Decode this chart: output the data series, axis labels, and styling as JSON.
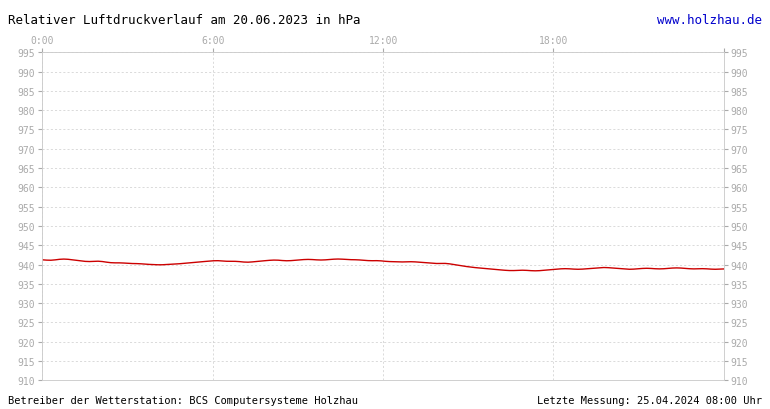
{
  "title": "Relativer Luftdruckverlauf am 20.06.2023 in hPa",
  "url_text": "www.holzhau.de",
  "footer_left": "Betreiber der Wetterstation: BCS Computersysteme Holzhau",
  "footer_right": "Letzte Messung: 25.04.2024 08:00 Uhr",
  "bg_color": "#ffffff",
  "plot_bg_color": "#ffffff",
  "grid_color": "#cccccc",
  "line_color": "#cc0000",
  "title_color": "#000000",
  "url_color": "#0000cc",
  "footer_color": "#000000",
  "tick_color": "#aaaaaa",
  "ylim": [
    910,
    995
  ],
  "ytick_step": 5,
  "xlim": [
    0,
    1440
  ],
  "xtick_positions": [
    0,
    360,
    720,
    1080,
    1440
  ],
  "xtick_labels": [
    "0:00",
    "6:00",
    "12:00",
    "18:00",
    ""
  ],
  "pressure_data": [
    941.3,
    941.1,
    941.0,
    941.2,
    941.4,
    941.5,
    941.4,
    941.2,
    941.1,
    940.9,
    940.8,
    940.7,
    940.8,
    941.0,
    940.8,
    940.6,
    940.4,
    940.4,
    940.5,
    940.4,
    940.3,
    940.2,
    940.3,
    940.2,
    940.1,
    940.0,
    940.0,
    939.9,
    939.9,
    940.0,
    940.1,
    940.1,
    940.2,
    940.3,
    940.4,
    940.5,
    940.6,
    940.7,
    940.8,
    940.9,
    941.0,
    941.1,
    940.9,
    940.8,
    940.8,
    940.9,
    940.8,
    940.6,
    940.5,
    940.7,
    940.8,
    940.9,
    941.0,
    941.1,
    941.2,
    941.2,
    941.0,
    940.9,
    941.0,
    941.1,
    941.2,
    941.3,
    941.4,
    941.3,
    941.2,
    941.1,
    941.2,
    941.3,
    941.4,
    941.5,
    941.4,
    941.3,
    941.2,
    941.3,
    941.2,
    941.1,
    941.0,
    940.9,
    941.1,
    941.0,
    940.8,
    940.7,
    940.8,
    940.7,
    940.6,
    940.7,
    940.8,
    940.7,
    940.6,
    940.5,
    940.4,
    940.3,
    940.2,
    940.3,
    940.4,
    940.2,
    940.0,
    939.8,
    939.6,
    939.5,
    939.3,
    939.2,
    939.1,
    939.0,
    938.9,
    938.8,
    938.7,
    938.6,
    938.5,
    938.4,
    938.4,
    938.5,
    938.6,
    938.5,
    938.4,
    938.3,
    938.4,
    938.5,
    938.6,
    938.7,
    938.8,
    938.9,
    939.0,
    938.9,
    938.8,
    938.7,
    938.8,
    938.9,
    939.0,
    939.1,
    939.2,
    939.3,
    939.2,
    939.1,
    939.0,
    938.9,
    938.8,
    938.7,
    938.8,
    938.9,
    939.0,
    939.1,
    939.0,
    938.9,
    938.8,
    938.9,
    939.0,
    939.1,
    939.2,
    939.1,
    939.0,
    938.9,
    938.8,
    938.9,
    939.0,
    938.9,
    938.8,
    938.7,
    938.8,
    938.9
  ]
}
